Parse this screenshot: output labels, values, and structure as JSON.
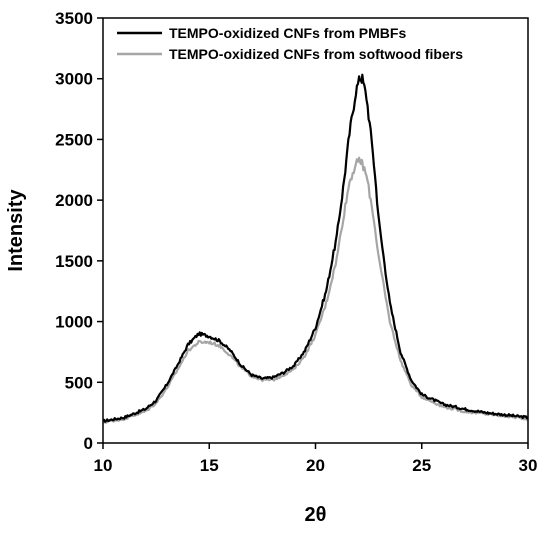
{
  "chart_data": {
    "type": "line",
    "title": "",
    "xlabel": "2θ",
    "ylabel": "Intensity",
    "xlim": [
      10,
      30
    ],
    "ylim": [
      0,
      3500
    ],
    "xticks": [
      10,
      15,
      20,
      25,
      30
    ],
    "yticks": [
      0,
      500,
      1000,
      1500,
      2000,
      2500,
      3000,
      3500
    ],
    "grid": false,
    "legend_position": "top-left",
    "series": [
      {
        "name": "TEMPO-oxidized CNFs from PMBFs",
        "color": "#000000",
        "x": [
          10,
          11,
          12,
          12.5,
          13,
          13.5,
          14,
          14.5,
          15,
          15.5,
          16,
          16.5,
          17,
          17.5,
          18,
          18.5,
          19,
          19.5,
          20,
          20.5,
          21,
          21.3,
          21.6,
          21.9,
          22.1,
          22.2,
          22.4,
          22.7,
          23,
          23.5,
          24,
          24.5,
          25,
          26,
          27,
          28,
          29,
          30
        ],
        "values": [
          180,
          210,
          280,
          350,
          480,
          640,
          810,
          900,
          880,
          840,
          760,
          640,
          560,
          530,
          540,
          580,
          640,
          760,
          950,
          1250,
          1700,
          2100,
          2550,
          2900,
          3010,
          3000,
          2850,
          2400,
          1800,
          1150,
          750,
          520,
          400,
          320,
          280,
          250,
          230,
          210
        ]
      },
      {
        "name": "TEMPO-oxidized CNFs from softwood fibers",
        "color": "#a6a6a6",
        "x": [
          10,
          11,
          12,
          12.5,
          13,
          13.5,
          14,
          14.5,
          15,
          15.5,
          16,
          16.5,
          17,
          17.5,
          18,
          18.5,
          19,
          19.5,
          20,
          20.5,
          21,
          21.3,
          21.6,
          21.9,
          22.1,
          22.2,
          22.4,
          22.7,
          23,
          23.5,
          24,
          24.5,
          25,
          26,
          27,
          28,
          29,
          30
        ],
        "values": [
          170,
          200,
          260,
          330,
          450,
          600,
          760,
          830,
          830,
          800,
          720,
          620,
          550,
          520,
          520,
          560,
          610,
          720,
          890,
          1150,
          1520,
          1850,
          2150,
          2300,
          2320,
          2300,
          2200,
          1900,
          1500,
          1000,
          680,
          480,
          380,
          300,
          260,
          240,
          220,
          200
        ]
      }
    ]
  }
}
